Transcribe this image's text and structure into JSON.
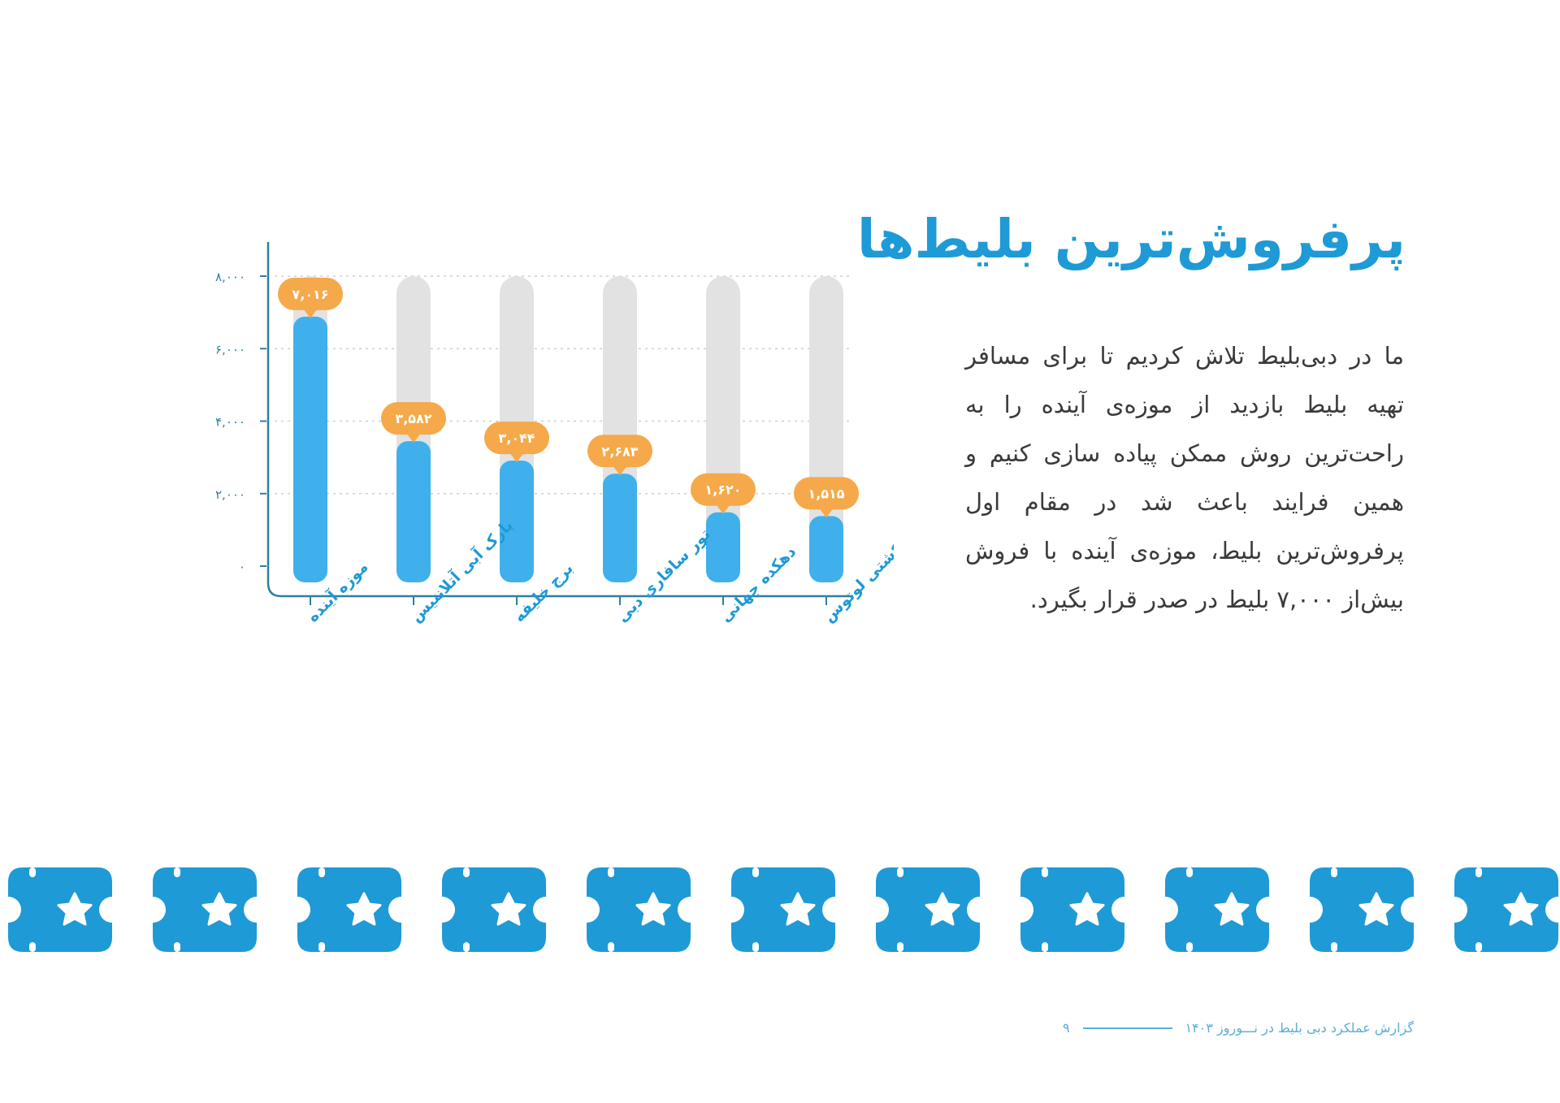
{
  "page": {
    "title": "پرفروش‌ترین بلیط‌ها",
    "paragraph_lines": [
      "ما در دبی‌بلیط تلاش کردیم تا برای مسافر",
      "تهیه بلیط بازدید از موزه‌ی آینده را به",
      "راحت‌ترین روش ممکن پیاده سازی کنیم و",
      "همین فرایند باعث شد در مقام اول",
      "پرفروش‌ترین بلیط، موزه‌ی آینده با فروش",
      "بیش‌از ۷,۰۰۰ بلیط در صدر قرار بگیرد."
    ],
    "footer_text": "گزارش عملکرد دبی بلیط در نـــوروز ۱۴۰۳",
    "page_number": "۹"
  },
  "colors": {
    "accent": "#1e9ad6",
    "bar_fill": "#3fb0ec",
    "bar_track": "#e2e2e2",
    "label_badge": "#f5a94a",
    "axis": "#2f7f9e"
  },
  "chart_data": {
    "type": "bar",
    "title": "",
    "xlabel": "",
    "ylabel": "",
    "ylim": [
      0,
      8000
    ],
    "yticks": [
      0,
      2000,
      4000,
      6000,
      8000
    ],
    "ytick_labels": [
      "۰",
      "۲,۰۰۰",
      "۴,۰۰۰",
      "۶,۰۰۰",
      "۸,۰۰۰"
    ],
    "categories": [
      "موزه آینده",
      "پارک آبی آتلانتیس",
      "برج خلیفه",
      "تور سافاری دبی",
      "دهکده جهانی",
      "کشتی لوتوس"
    ],
    "values": [
      7016,
      3582,
      3044,
      2683,
      1620,
      1515
    ],
    "data_labels": [
      "۷,۰۱۶",
      "۳,۵۸۲",
      "۳,۰۴۴",
      "۲,۶۸۳",
      "۱,۶۲۰",
      "۱,۵۱۵"
    ]
  },
  "decor": {
    "tile_icon": "star-icon",
    "tile_count": 11
  }
}
